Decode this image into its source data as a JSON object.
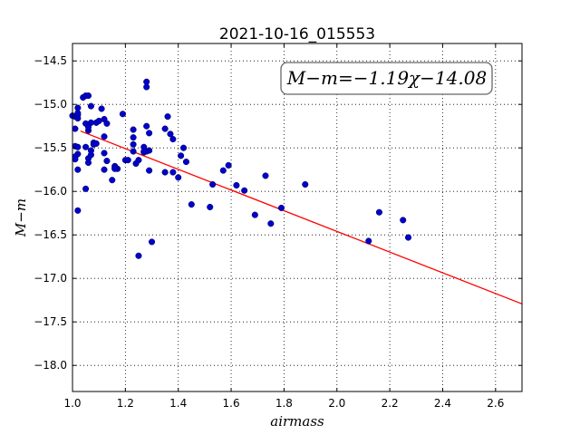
{
  "chart_data": {
    "type": "scatter",
    "title": "2021-10-16_015553",
    "xlabel": "airmass",
    "ylabel": "M−m",
    "xlim": [
      1.0,
      2.7
    ],
    "ylim": [
      -18.3,
      -14.3
    ],
    "y_inverted": true,
    "grid": true,
    "x_ticks": [
      "1.0",
      "1.2",
      "1.4",
      "1.6",
      "1.8",
      "2.0",
      "2.2",
      "2.4",
      "2.6"
    ],
    "y_ticks": [
      "−14.5",
      "−15.0",
      "−15.5",
      "−16.0",
      "−16.5",
      "−17.0",
      "−17.5",
      "−18.0"
    ],
    "fit_annotation": "M−m=−1.19χ−14.08",
    "fit": {
      "slope": -1.19,
      "intercept": -14.08,
      "color": "#ff0000"
    },
    "point_color": "#0000cc",
    "x": [
      1.0,
      1.01,
      1.01,
      1.01,
      1.02,
      1.02,
      1.02,
      1.02,
      1.01,
      1.01,
      1.02,
      1.02,
      1.02,
      1.02,
      1.04,
      1.05,
      1.06,
      1.05,
      1.05,
      1.06,
      1.06,
      1.07,
      1.07,
      1.07,
      1.06,
      1.06,
      1.07,
      1.08,
      1.08,
      1.09,
      1.09,
      1.1,
      1.05,
      1.11,
      1.12,
      1.12,
      1.13,
      1.12,
      1.13,
      1.12,
      1.15,
      1.16,
      1.17,
      1.16,
      1.16,
      1.19,
      1.2,
      1.21,
      1.23,
      1.23,
      1.23,
      1.24,
      1.25,
      1.23,
      1.27,
      1.27,
      1.28,
      1.29,
      1.28,
      1.28,
      1.29,
      1.28,
      1.27,
      1.29,
      1.25,
      1.3,
      1.35,
      1.36,
      1.37,
      1.38,
      1.38,
      1.35,
      1.4,
      1.41,
      1.42,
      1.43,
      1.45,
      1.52,
      1.53,
      1.57,
      1.59,
      1.62,
      1.65,
      1.69,
      1.73,
      1.75,
      1.79,
      1.88,
      2.12,
      2.16,
      2.25,
      2.27
    ],
    "y": [
      -15.13,
      -15.14,
      -15.28,
      -15.48,
      -15.04,
      -15.16,
      -15.49,
      -15.57,
      -15.6,
      -15.63,
      -15.75,
      -16.22,
      -15.12,
      -15.1,
      -14.92,
      -14.9,
      -14.9,
      -15.22,
      -15.49,
      -15.3,
      -15.26,
      -15.21,
      -15.02,
      -15.53,
      -15.62,
      -15.67,
      -15.58,
      -15.44,
      -15.46,
      -15.21,
      -15.45,
      -15.19,
      -15.97,
      -15.05,
      -15.17,
      -15.37,
      -15.22,
      -15.56,
      -15.65,
      -15.75,
      -15.87,
      -15.71,
      -15.74,
      -15.73,
      -15.74,
      -15.11,
      -15.64,
      -15.64,
      -15.29,
      -15.38,
      -15.46,
      -15.68,
      -15.64,
      -15.54,
      -15.49,
      -15.55,
      -15.25,
      -15.33,
      -14.74,
      -14.8,
      -15.53,
      -15.54,
      -15.54,
      -15.76,
      -16.74,
      -16.58,
      -15.28,
      -15.14,
      -15.34,
      -15.4,
      -15.78,
      -15.78,
      -15.84,
      -15.59,
      -15.5,
      -15.66,
      -16.15,
      -16.18,
      -15.92,
      -15.76,
      -15.7,
      -15.93,
      -15.99,
      -16.27,
      -15.82,
      -16.37,
      -16.19,
      -15.92,
      -16.57,
      -16.24,
      -16.33,
      -16.53
    ]
  }
}
